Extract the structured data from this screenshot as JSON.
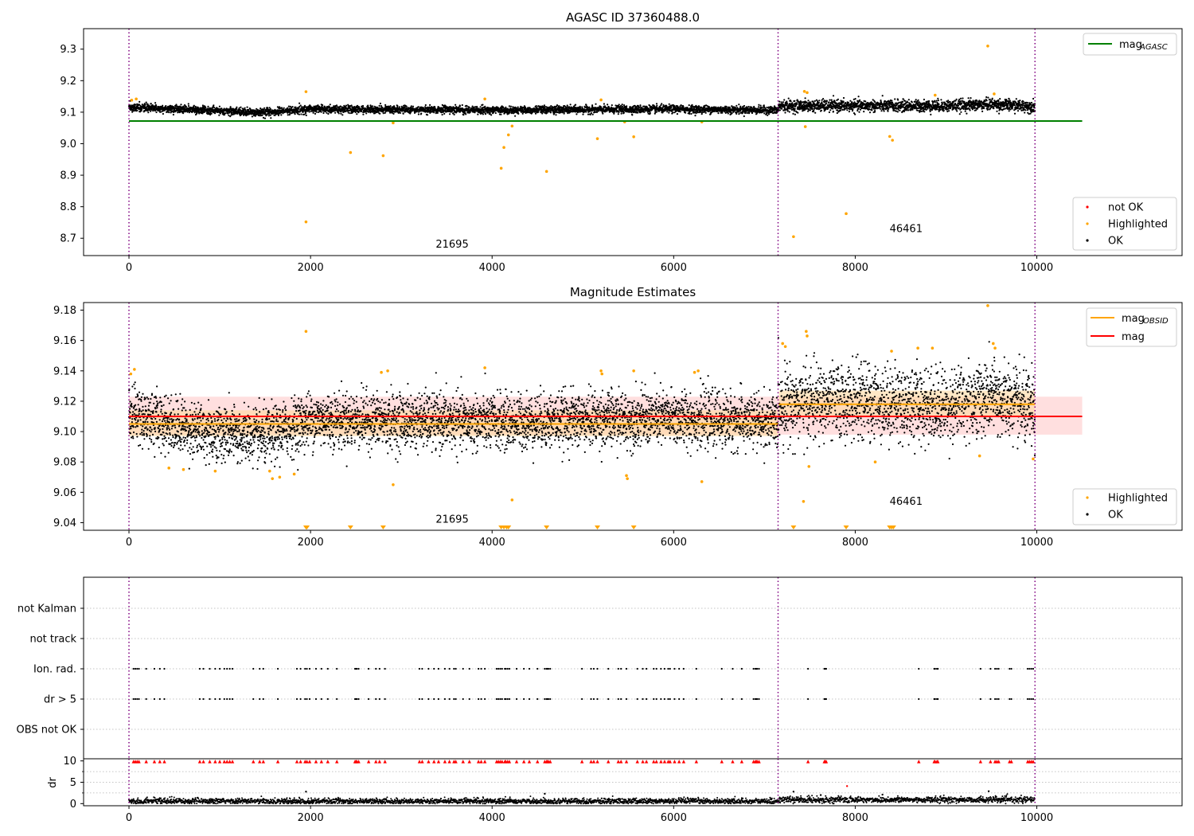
{
  "figure": {
    "panel1_title": "AGASC ID 37360488.0",
    "panel2_title": "Magnitude Estimates"
  },
  "colors": {
    "ok": "#000000",
    "highlighted": "#ffa500",
    "not_ok": "#ff0000",
    "mag_agasc": "#008000",
    "mag": "#ff0000",
    "mag_obsid": "#ffa500",
    "band_mag": "#ffc0c0",
    "band_obsid": "#ffd9a0",
    "obsid_divider": "#800080",
    "grid": "#b0b0b0"
  },
  "chart_data": [
    {
      "type": "scatter",
      "title": "AGASC ID 37360488.0",
      "xlabel": "",
      "ylabel": "",
      "xlim": [
        -500,
        11600
      ],
      "ylim": [
        8.645,
        9.365
      ],
      "xticks": [
        "0",
        "2000",
        "4000",
        "6000",
        "8000",
        "10000"
      ],
      "yticks": [
        "8.7",
        "8.8",
        "8.9",
        "9.0",
        "9.1",
        "9.2",
        "9.3"
      ],
      "obsid_boundaries": [
        0,
        7150,
        9980
      ],
      "obsid_labels": [
        {
          "label": "21695",
          "x": 3560,
          "y": 8.68
        },
        {
          "label": "46461",
          "x": 8560,
          "y": 8.73
        }
      ],
      "lines": [
        {
          "name": "mag_AGASC",
          "y": 9.072,
          "x": [
            0,
            10500
          ]
        }
      ],
      "series": [
        {
          "name": "not OK",
          "points": []
        },
        {
          "name": "Highlighted",
          "points": [
            [
              1950,
              9.165
            ],
            [
              1950,
              8.752
            ],
            [
              2440,
              8.972
            ],
            [
              2800,
              8.962
            ],
            [
              2910,
              9.066
            ],
            [
              4100,
              8.922
            ],
            [
              4130,
              8.988
            ],
            [
              4180,
              9.028
            ],
            [
              4220,
              9.056
            ],
            [
              4600,
              8.912
            ],
            [
              5160,
              9.016
            ],
            [
              5460,
              9.069
            ],
            [
              5560,
              9.022
            ],
            [
              6310,
              9.069
            ],
            [
              7320,
              8.705
            ],
            [
              7450,
              9.054
            ],
            [
              7900,
              8.778
            ],
            [
              8380,
              9.023
            ],
            [
              8410,
              9.011
            ],
            [
              9460,
              9.31
            ],
            [
              30,
              9.138
            ],
            [
              80,
              9.142
            ],
            [
              3920,
              9.142
            ],
            [
              5200,
              9.139
            ],
            [
              7440,
              9.166
            ],
            [
              7470,
              9.162
            ],
            [
              8880,
              9.154
            ],
            [
              9530,
              9.158
            ]
          ]
        },
        {
          "name": "OK",
          "trend": [
            [
              0,
              9.115
            ],
            [
              1000,
              9.105
            ],
            [
              1500,
              9.098
            ],
            [
              2000,
              9.11
            ],
            [
              3000,
              9.108
            ],
            [
              4000,
              9.107
            ],
            [
              5000,
              9.108
            ],
            [
              6000,
              9.11
            ],
            [
              7150,
              9.106
            ],
            [
              7160,
              9.12
            ],
            [
              8000,
              9.12
            ],
            [
              9000,
              9.12
            ],
            [
              9500,
              9.125
            ],
            [
              9980,
              9.118
            ]
          ]
        }
      ],
      "legend_top": {
        "position": "upper right",
        "entries": [
          "mag_AGASC"
        ]
      },
      "legend_bottom": {
        "position": "lower right",
        "entries": [
          "not OK",
          "Highlighted",
          "OK"
        ]
      }
    },
    {
      "type": "scatter",
      "title": "Magnitude Estimates",
      "xlabel": "",
      "ylabel": "",
      "xlim": [
        -500,
        11600
      ],
      "ylim": [
        9.035,
        9.185
      ],
      "xticks": [
        "0",
        "2000",
        "4000",
        "6000",
        "8000",
        "10000"
      ],
      "yticks": [
        "9.04",
        "9.06",
        "9.08",
        "9.10",
        "9.12",
        "9.14",
        "9.16",
        "9.18"
      ],
      "obsid_boundaries": [
        0,
        7150,
        9980
      ],
      "obsid_labels": [
        {
          "label": "21695",
          "x": 3560,
          "y": 9.042
        },
        {
          "label": "46461",
          "x": 8560,
          "y": 9.054
        }
      ],
      "mag": {
        "value": 9.11,
        "band": [
          9.098,
          9.123
        ],
        "x": [
          0,
          10500
        ]
      },
      "mag_obsid": [
        {
          "x": [
            0,
            7150
          ],
          "value": 9.105,
          "band": [
            9.097,
            9.114
          ]
        },
        {
          "x": [
            7160,
            9980
          ],
          "value": 9.118,
          "band": [
            9.11,
            9.127
          ]
        }
      ],
      "series": [
        {
          "name": "Highlighted",
          "points": [
            [
              20,
              9.138
            ],
            [
              60,
              9.141
            ],
            [
              440,
              9.076
            ],
            [
              600,
              9.075
            ],
            [
              950,
              9.074
            ],
            [
              1550,
              9.074
            ],
            [
              1580,
              9.069
            ],
            [
              1660,
              9.07
            ],
            [
              1820,
              9.072
            ],
            [
              1950,
              9.166
            ],
            [
              2780,
              9.139
            ],
            [
              2850,
              9.14
            ],
            [
              2910,
              9.065
            ],
            [
              3920,
              9.142
            ],
            [
              4220,
              9.055
            ],
            [
              5200,
              9.14
            ],
            [
              5210,
              9.138
            ],
            [
              5480,
              9.071
            ],
            [
              5490,
              9.069
            ],
            [
              5560,
              9.14
            ],
            [
              6230,
              9.139
            ],
            [
              6270,
              9.14
            ],
            [
              6310,
              9.067
            ],
            [
              7200,
              9.158
            ],
            [
              7230,
              9.156
            ],
            [
              7430,
              9.054
            ],
            [
              7460,
              9.166
            ],
            [
              7470,
              9.163
            ],
            [
              7490,
              9.077
            ],
            [
              8220,
              9.08
            ],
            [
              8400,
              9.153
            ],
            [
              8690,
              9.155
            ],
            [
              8850,
              9.155
            ],
            [
              9370,
              9.084
            ],
            [
              9460,
              9.183
            ],
            [
              9520,
              9.158
            ],
            [
              9540,
              9.155
            ],
            [
              9960,
              9.082
            ]
          ]
        },
        {
          "name": "OK",
          "trend": [
            [
              0,
              9.112
            ],
            [
              400,
              9.106
            ],
            [
              800,
              9.1
            ],
            [
              1500,
              9.096
            ],
            [
              2000,
              9.108
            ],
            [
              3000,
              9.107
            ],
            [
              4000,
              9.106
            ],
            [
              5000,
              9.108
            ],
            [
              6000,
              9.109
            ],
            [
              7150,
              9.106
            ],
            [
              7160,
              9.118
            ],
            [
              8000,
              9.12
            ],
            [
              9000,
              9.117
            ],
            [
              9500,
              9.123
            ],
            [
              9980,
              9.113
            ]
          ]
        },
        {
          "name": "below_axis_markers",
          "x": [
            1950,
            1960,
            2440,
            2800,
            4100,
            4130,
            4160,
            4180,
            4600,
            5160,
            5560,
            7320,
            7900,
            8380,
            8400,
            8420
          ]
        }
      ],
      "legend_top": {
        "position": "upper right",
        "entries": [
          "mag_OBSID",
          "mag"
        ]
      },
      "legend_bottom": {
        "position": "lower right",
        "entries": [
          "Highlighted",
          "OK"
        ]
      }
    },
    {
      "type": "scatter",
      "title": "",
      "xlabel": "",
      "ylabel": "",
      "xlim": [
        -500,
        11600
      ],
      "categories": [
        "not Kalman",
        "not track",
        "Ion. rad.",
        "dr > 5",
        "OBS not OK"
      ],
      "flag_x": [
        50,
        70,
        90,
        110,
        190,
        280,
        340,
        390,
        780,
        820,
        890,
        950,
        1000,
        1050,
        1080,
        1110,
        1140,
        1370,
        1440,
        1480,
        1640,
        1850,
        1890,
        1940,
        1960,
        1990,
        2060,
        2120,
        2190,
        2290,
        2490,
        2500,
        2510,
        2530,
        2640,
        2720,
        2760,
        2820,
        3200,
        3230,
        3300,
        3360,
        3410,
        3480,
        3530,
        3580,
        3600,
        3680,
        3750,
        3850,
        3880,
        3920,
        4050,
        4070,
        4090,
        4110,
        4140,
        4150,
        4170,
        4190,
        4270,
        4350,
        4410,
        4500,
        4580,
        4600,
        4610,
        4620,
        4640,
        4990,
        5090,
        5120,
        5160,
        5280,
        5390,
        5420,
        5480,
        5600,
        5660,
        5700,
        5780,
        5810,
        5860,
        5900,
        5940,
        5960,
        6010,
        6060,
        6110,
        6250,
        6530,
        6650,
        6750,
        6880,
        6900,
        6910,
        6920,
        6940,
        7480,
        7660,
        7670,
        7680,
        8700,
        8870,
        8880,
        8900,
        8910,
        9380,
        9490,
        9540,
        9560,
        9580,
        9700,
        9720,
        9900,
        9920,
        9940,
        9960
      ]
    },
    {
      "type": "scatter",
      "title": "",
      "xlabel": "",
      "ylabel": "dr",
      "xlim": [
        -500,
        11600
      ],
      "ylim": [
        -0.5,
        10.5
      ],
      "xticks": [
        "0",
        "2000",
        "4000",
        "6000",
        "8000",
        "10000"
      ],
      "yticks": [
        "0",
        "5",
        "10"
      ],
      "outliers": [
        [
          1950,
          2.8
        ],
        [
          4580,
          2.3
        ],
        [
          7320,
          2.8
        ],
        [
          7910,
          4.1
        ],
        [
          8300,
          2.1
        ],
        [
          9470,
          2.9
        ],
        [
          7620,
          2.0
        ]
      ],
      "red_markers_at": 10
    }
  ]
}
